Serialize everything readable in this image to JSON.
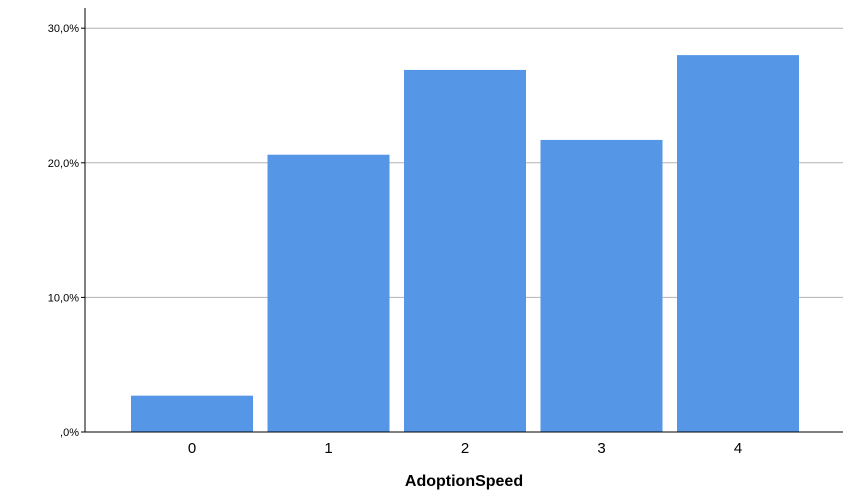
{
  "chart_data": {
    "type": "bar",
    "title": "",
    "xlabel": "AdoptionSpeed",
    "ylabel": "",
    "categories": [
      "0",
      "1",
      "2",
      "3",
      "4"
    ],
    "values": [
      2.7,
      20.6,
      26.9,
      21.7,
      28.0
    ],
    "ylim": [
      0,
      31.5
    ],
    "yticks": [
      0,
      10,
      20,
      30
    ],
    "ytick_labels": [
      ",0%",
      "10,0%",
      "20,0%",
      "30,0%"
    ],
    "grid": true,
    "legend": "none",
    "bar_color": "#5596e6",
    "grid_color": "#b3b3b3",
    "axis_color": "#000000"
  }
}
